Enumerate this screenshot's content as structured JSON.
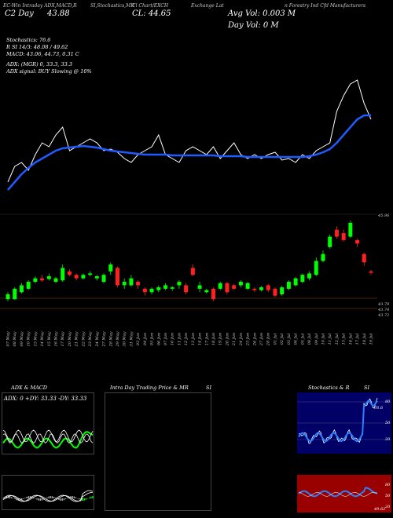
{
  "header": {
    "line1_left": "EC-Win Intraday ADX,MACD,R",
    "line1_mid": "SI,Stochastics,MR",
    "line1_ci": "Cl Chart/EXCH",
    "line1_right": "Exchange Lat",
    "line1_far": "n Forestry Ind Cfd Manufacturers",
    "price_line_left": "C2  Day",
    "price_line_val": "43.88",
    "price_cl": "CL: 44.65",
    "avg_vol": "Avg Vol: 0.003 M",
    "day_vol": "Day Vol: 0   M"
  },
  "indicators": {
    "stochastics": "Stochastics: 76.6",
    "rsi": "R       SI 14/3: 48.08 / 49.62",
    "macd": "MACD: 43.06, 44.73, 0.31 C",
    "adx": "ADX:                              (MGR) 0, 33.3, 33.3",
    "adx_signal": "ADX signal:                       BUY Slowing @ 10%"
  },
  "price_levels": {
    "top": "45.96",
    "mid": "43.79",
    "low1": "43.74",
    "low2": "43.72"
  },
  "dates": [
    "07 May",
    "08 May",
    "09 May",
    "10 May",
    "13 May",
    "14 May",
    "15 May",
    "16 May",
    "17 May",
    "20 May",
    "21 May",
    "22 May",
    "23 May",
    "24 May",
    "27 May",
    "28 May",
    "29 May",
    "30 May",
    "31 May",
    "03 Jun",
    "04 Jun",
    "05 Jun",
    "06 Jun",
    "07 Jun",
    "10 Jun",
    "11 Jun",
    "12 Jun",
    "13 Jun",
    "14 Jun",
    "17 Jun",
    "18 Jun",
    "19 Jun",
    "20 Jun",
    "21 Jun",
    "24 Jun",
    "25 Jun",
    "26 Jun",
    "27 Jun",
    "28 Jun",
    "01 Jul",
    "02 Jul",
    "03 Jul",
    "04 Jul",
    "05 Jul",
    "08 Jul",
    "09 Jul",
    "10 Jul",
    "11 Jul",
    "12 Jul",
    "15 Jul",
    "16 Jul",
    "17 Jul",
    "18 Jul",
    "19 Jul"
  ],
  "panels": {
    "adx_title": "ADX  & MACD",
    "adx_readout": "ADX: 0  +DY: 33.33  -DY: 33.33",
    "mr_title": "Intra  Day Trading Price  & MR",
    "mr_suffix": "SI",
    "stoch_title": "Stochastics & R",
    "stoch_suffix": "SI",
    "stoch_levels": [
      "80",
      "50",
      "20"
    ],
    "rsi_levels": [
      "80",
      "50",
      "20"
    ],
    "stoch_tag": "76.6",
    "rsi_tag": "49.62"
  },
  "colors": {
    "up": "#00ff00",
    "down": "#ff2020",
    "ma": "#1f5bff",
    "price": "#ffffff",
    "stoch_bg": "#000066",
    "rsi_bg": "#990000",
    "level_line": "#8b4513"
  },
  "chart_data": {
    "type": "line",
    "title": "",
    "series": [
      {
        "name": "price",
        "values": [
          43.7,
          43.9,
          43.95,
          43.85,
          44.05,
          44.2,
          44.15,
          44.3,
          44.4,
          44.1,
          44.15,
          44.2,
          44.25,
          44.2,
          44.1,
          44.12,
          44.08,
          44.0,
          43.95,
          44.05,
          44.1,
          44.15,
          44.3,
          44.05,
          44.0,
          43.95,
          44.1,
          44.15,
          44.1,
          44.05,
          44.15,
          44.0,
          44.1,
          44.2,
          44.05,
          44.0,
          44.05,
          44.0,
          44.05,
          44.08,
          43.98,
          44.0,
          43.95,
          44.05,
          44.0,
          44.1,
          44.15,
          44.2,
          44.6,
          44.8,
          44.95,
          45.0,
          44.7,
          44.5
        ]
      },
      {
        "name": "moving average",
        "values": [
          43.6,
          43.7,
          43.8,
          43.88,
          43.95,
          44.0,
          44.05,
          44.1,
          44.13,
          44.14,
          44.15,
          44.16,
          44.15,
          44.14,
          44.12,
          44.1,
          44.09,
          44.08,
          44.07,
          44.06,
          44.05,
          44.05,
          44.05,
          44.05,
          44.04,
          44.04,
          44.04,
          44.04,
          44.04,
          44.04,
          44.04,
          44.03,
          44.03,
          44.03,
          44.03,
          44.02,
          44.02,
          44.02,
          44.02,
          44.02,
          44.02,
          44.02,
          44.02,
          44.02,
          44.03,
          44.05,
          44.08,
          44.12,
          44.2,
          44.3,
          44.4,
          44.5,
          44.55,
          44.55
        ]
      }
    ],
    "candles": [
      {
        "o": 43.85,
        "c": 43.92,
        "h": 43.95,
        "l": 43.82
      },
      {
        "o": 43.85,
        "c": 44.0,
        "h": 44.02,
        "l": 43.84
      },
      {
        "o": 43.95,
        "c": 44.05,
        "h": 44.08,
        "l": 43.93
      },
      {
        "o": 44.0,
        "c": 44.1,
        "h": 44.12,
        "l": 43.98
      },
      {
        "o": 44.1,
        "c": 44.15,
        "h": 44.18,
        "l": 44.08
      },
      {
        "o": 44.15,
        "c": 44.12,
        "h": 44.2,
        "l": 44.1
      },
      {
        "o": 44.14,
        "c": 44.18,
        "h": 44.22,
        "l": 44.12
      },
      {
        "o": 44.1,
        "c": 44.15,
        "h": 44.17,
        "l": 44.08
      },
      {
        "o": 44.12,
        "c": 44.3,
        "h": 44.35,
        "l": 44.1
      },
      {
        "o": 44.25,
        "c": 44.2,
        "h": 44.28,
        "l": 44.18
      },
      {
        "o": 44.2,
        "c": 44.15,
        "h": 44.22,
        "l": 44.12
      },
      {
        "o": 44.15,
        "c": 44.2,
        "h": 44.22,
        "l": 44.13
      },
      {
        "o": 44.2,
        "c": 44.22,
        "h": 44.25,
        "l": 44.18
      },
      {
        "o": 44.15,
        "c": 44.18,
        "h": 44.2,
        "l": 44.12
      },
      {
        "o": 44.1,
        "c": 44.2,
        "h": 44.22,
        "l": 44.08
      },
      {
        "o": 44.25,
        "c": 44.35,
        "h": 44.38,
        "l": 44.2
      },
      {
        "o": 44.3,
        "c": 44.05,
        "h": 44.32,
        "l": 44.02
      },
      {
        "o": 44.05,
        "c": 44.1,
        "h": 44.15,
        "l": 44.0
      },
      {
        "o": 44.05,
        "c": 44.15,
        "h": 44.2,
        "l": 44.03
      },
      {
        "o": 44.1,
        "c": 44.05,
        "h": 44.12,
        "l": 44.0
      },
      {
        "o": 44.0,
        "c": 43.95,
        "h": 44.02,
        "l": 43.9
      },
      {
        "o": 43.95,
        "c": 44.0,
        "h": 44.02,
        "l": 43.92
      },
      {
        "o": 43.98,
        "c": 44.02,
        "h": 44.05,
        "l": 43.95
      },
      {
        "o": 44.0,
        "c": 44.05,
        "h": 44.08,
        "l": 43.98
      },
      {
        "o": 44.0,
        "c": 44.02,
        "h": 44.04,
        "l": 43.97
      },
      {
        "o": 44.05,
        "c": 44.1,
        "h": 44.12,
        "l": 44.0
      },
      {
        "o": 44.05,
        "c": 43.95,
        "h": 44.08,
        "l": 43.92
      },
      {
        "o": 44.3,
        "c": 44.2,
        "h": 44.35,
        "l": 44.18
      },
      {
        "o": 44.0,
        "c": 44.05,
        "h": 44.1,
        "l": 43.95
      },
      {
        "o": 43.95,
        "c": 43.98,
        "h": 44.0,
        "l": 43.93
      },
      {
        "o": 44.0,
        "c": 43.85,
        "h": 44.02,
        "l": 43.82
      },
      {
        "o": 44.0,
        "c": 44.08,
        "h": 44.1,
        "l": 43.98
      },
      {
        "o": 44.08,
        "c": 43.95,
        "h": 44.1,
        "l": 43.92
      },
      {
        "o": 44.05,
        "c": 44.0,
        "h": 44.07,
        "l": 43.98
      },
      {
        "o": 44.05,
        "c": 44.1,
        "h": 44.12,
        "l": 44.02
      },
      {
        "o": 44.0,
        "c": 44.08,
        "h": 44.1,
        "l": 43.98
      },
      {
        "o": 44.0,
        "c": 43.98,
        "h": 44.02,
        "l": 43.95
      },
      {
        "o": 43.98,
        "c": 44.02,
        "h": 44.04,
        "l": 43.96
      },
      {
        "o": 44.05,
        "c": 43.98,
        "h": 44.07,
        "l": 43.95
      },
      {
        "o": 44.0,
        "c": 43.9,
        "h": 44.02,
        "l": 43.88
      },
      {
        "o": 43.92,
        "c": 44.02,
        "h": 44.04,
        "l": 43.9
      },
      {
        "o": 44.0,
        "c": 44.1,
        "h": 44.12,
        "l": 43.98
      },
      {
        "o": 44.05,
        "c": 44.15,
        "h": 44.17,
        "l": 44.03
      },
      {
        "o": 44.1,
        "c": 44.2,
        "h": 44.22,
        "l": 44.08
      },
      {
        "o": 44.15,
        "c": 44.22,
        "h": 44.25,
        "l": 44.12
      },
      {
        "o": 44.2,
        "c": 44.4,
        "h": 44.45,
        "l": 44.18
      },
      {
        "o": 44.4,
        "c": 44.5,
        "h": 44.55,
        "l": 44.38
      },
      {
        "o": 44.6,
        "c": 44.75,
        "h": 44.78,
        "l": 44.58
      },
      {
        "o": 44.85,
        "c": 44.75,
        "h": 44.9,
        "l": 44.72
      },
      {
        "o": 44.8,
        "c": 44.7,
        "h": 44.85,
        "l": 44.68
      },
      {
        "o": 44.75,
        "c": 44.95,
        "h": 44.98,
        "l": 44.73
      },
      {
        "o": 44.7,
        "c": 44.65,
        "h": 44.72,
        "l": 44.6
      },
      {
        "o": 44.5,
        "c": 44.38,
        "h": 44.52,
        "l": 44.33
      },
      {
        "o": 44.25,
        "c": 44.23,
        "h": 44.27,
        "l": 44.2
      }
    ],
    "ylim": [
      43.7,
      45.0
    ]
  }
}
